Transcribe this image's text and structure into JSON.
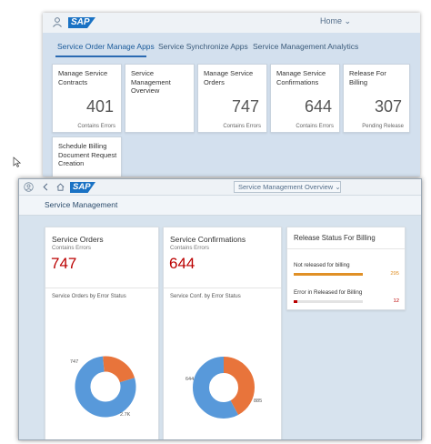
{
  "back_window": {
    "logo": "SAP",
    "home_label": "Home",
    "tabs": [
      {
        "label": "Service Order Manage Apps"
      },
      {
        "label": "Service Synchronize Apps"
      },
      {
        "label": "Service Management Analytics"
      }
    ],
    "tiles": [
      {
        "title": "Manage Service Contracts",
        "value": "401",
        "footer": "Contains Errors"
      },
      {
        "title": "Service Management Overview",
        "value": "",
        "footer": ""
      },
      {
        "title": "Manage Service Orders",
        "value": "747",
        "footer": "Contains Errors"
      },
      {
        "title": "Manage Service Confirmations",
        "value": "644",
        "footer": "Contains Errors"
      },
      {
        "title": "Release For Billing",
        "value": "307",
        "footer": "Pending Release"
      },
      {
        "title": "Schedule Billing Document Request Creation",
        "value": "",
        "footer": ""
      }
    ]
  },
  "front_window": {
    "logo": "SAP",
    "view_title": "Service Management Overview",
    "page_title": "Service Management",
    "cards": {
      "orders": {
        "title": "Service Orders",
        "subtitle": "Contains Errors",
        "kpi": "747",
        "chart_title": "Service Orders by Error Status",
        "segments": [
          {
            "value": 747,
            "label": "747",
            "color": "#e8743b"
          },
          {
            "value": 2700,
            "label": "2.7K",
            "color": "#5899da"
          }
        ]
      },
      "confirmations": {
        "title": "Service Confirmations",
        "subtitle": "Contains Errors",
        "kpi": "644",
        "chart_title": "Service Conf. by Error Status",
        "segments": [
          {
            "value": 644,
            "label": "644",
            "color": "#e8743b"
          },
          {
            "value": 885,
            "label": "885",
            "color": "#5899da"
          }
        ]
      },
      "release": {
        "title": "Release Status For Billing",
        "items": [
          {
            "label": "Not released for billing",
            "value": "295",
            "fraction": 1.0,
            "color": "#e09026"
          },
          {
            "label": "Error in Released for Billing",
            "value": "12",
            "fraction": 0.05,
            "color": "#bb0000"
          }
        ]
      }
    }
  },
  "colors": {
    "accent": "#1a72c4",
    "error": "#bb0000"
  }
}
